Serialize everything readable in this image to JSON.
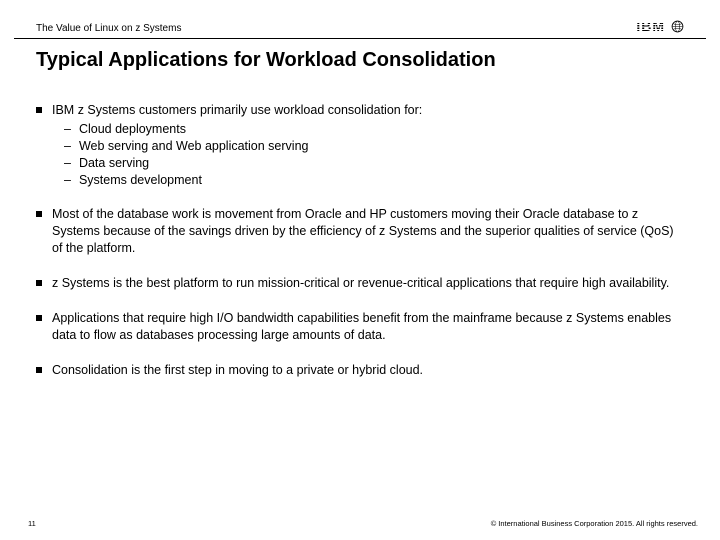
{
  "header": {
    "subtitle": "The Value of Linux on z Systems",
    "logo_text": "IBM"
  },
  "title": "Typical Applications for Workload Consolidation",
  "bullets": [
    {
      "text": "IBM z Systems customers primarily use workload consolidation for:",
      "subs": [
        "Cloud deployments",
        "Web serving and Web application serving",
        "Data serving",
        "Systems development"
      ]
    },
    {
      "text": "Most of the database work is movement from Oracle and HP customers moving their Oracle database to z Systems because of the savings driven by the efficiency of z Systems and the superior qualities of service (QoS) of the platform.",
      "subs": []
    },
    {
      "text": "z Systems is the best platform to run mission-critical or revenue-critical applications that require high availability.",
      "subs": []
    },
    {
      "text": "Applications that require high I/O bandwidth capabilities benefit from the mainframe because z Systems enables data to flow as databases processing large amounts of data.",
      "subs": []
    },
    {
      "text": "Consolidation is the first step in moving to a private or hybrid cloud.",
      "subs": []
    }
  ],
  "footer": {
    "page": "11",
    "copyright": "© International Business Corporation 2015. All rights reserved."
  },
  "colors": {
    "text": "#000000",
    "background": "#ffffff",
    "rule": "#000000"
  }
}
